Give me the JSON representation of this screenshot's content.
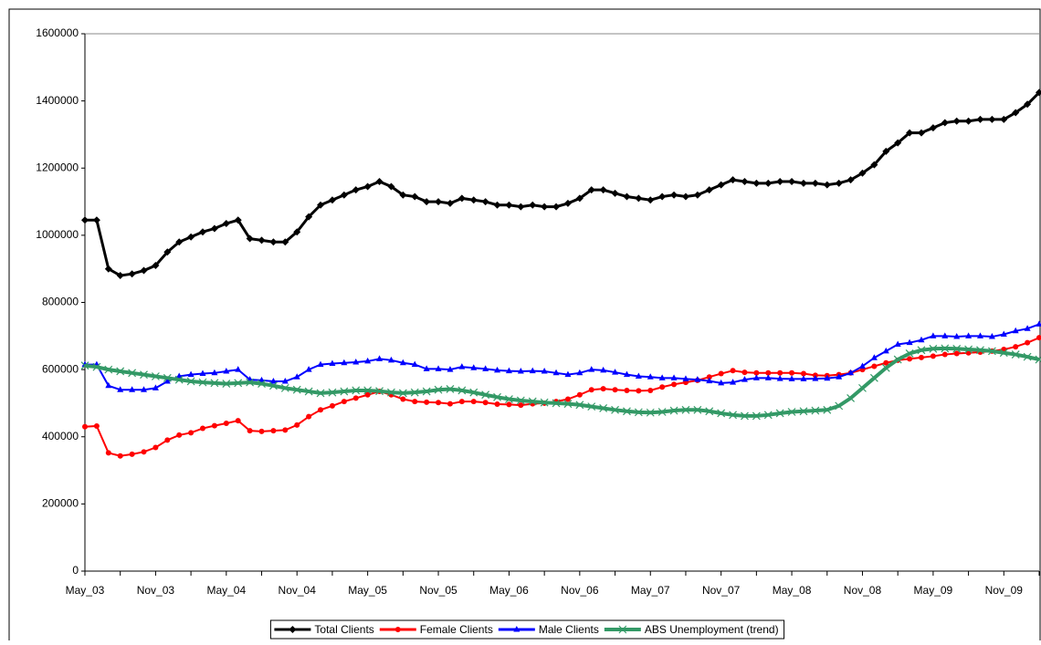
{
  "chart_data": {
    "type": "line",
    "categories": [
      "May_03",
      null,
      null,
      null,
      null,
      null,
      "Nov_03",
      null,
      null,
      null,
      null,
      null,
      "May_04",
      null,
      null,
      null,
      null,
      null,
      "Nov_04",
      null,
      null,
      null,
      null,
      null,
      "May_05",
      null,
      null,
      null,
      null,
      null,
      "Nov_05",
      null,
      null,
      null,
      null,
      null,
      "May_06",
      null,
      null,
      null,
      null,
      null,
      "Nov_06",
      null,
      null,
      null,
      null,
      null,
      "May_07",
      null,
      null,
      null,
      null,
      null,
      "Nov_07",
      null,
      null,
      null,
      null,
      null,
      "May_08",
      null,
      null,
      null,
      null,
      null,
      "Nov_08",
      null,
      null,
      null,
      null,
      null,
      "May_09",
      null,
      null,
      null,
      null,
      null,
      "Nov_09",
      null,
      null,
      null
    ],
    "ylim": [
      0,
      1600000
    ],
    "yticks": [
      0,
      200000,
      400000,
      600000,
      800000,
      1000000,
      1200000,
      1400000,
      1600000
    ],
    "legend": "bottom",
    "series": [
      {
        "name": "Total Clients",
        "color": "#000000",
        "marker": "diamond",
        "values": [
          1045000,
          1045000,
          900000,
          880000,
          885000,
          895000,
          910000,
          950000,
          980000,
          995000,
          1010000,
          1020000,
          1035000,
          1045000,
          990000,
          985000,
          980000,
          980000,
          1010000,
          1055000,
          1090000,
          1105000,
          1120000,
          1135000,
          1145000,
          1160000,
          1145000,
          1120000,
          1115000,
          1100000,
          1100000,
          1095000,
          1110000,
          1105000,
          1100000,
          1090000,
          1090000,
          1085000,
          1090000,
          1085000,
          1085000,
          1095000,
          1110000,
          1135000,
          1135000,
          1125000,
          1115000,
          1110000,
          1105000,
          1115000,
          1120000,
          1115000,
          1120000,
          1135000,
          1150000,
          1165000,
          1160000,
          1155000,
          1155000,
          1160000,
          1160000,
          1155000,
          1155000,
          1150000,
          1155000,
          1165000,
          1185000,
          1210000,
          1250000,
          1275000,
          1305000,
          1305000,
          1320000,
          1335000,
          1340000,
          1340000,
          1345000,
          1345000,
          1345000,
          1365000,
          1390000,
          1425000
        ]
      },
      {
        "name": "Female Clients",
        "color": "#ff0000",
        "marker": "circle",
        "values": [
          430000,
          432000,
          352000,
          343000,
          348000,
          355000,
          368000,
          390000,
          405000,
          412000,
          425000,
          433000,
          440000,
          448000,
          418000,
          416000,
          418000,
          420000,
          435000,
          460000,
          480000,
          492000,
          505000,
          515000,
          525000,
          535000,
          525000,
          512000,
          505000,
          503000,
          502000,
          498000,
          505000,
          505000,
          502000,
          497000,
          496000,
          494000,
          498000,
          500000,
          505000,
          512000,
          525000,
          540000,
          543000,
          540000,
          538000,
          537000,
          538000,
          548000,
          556000,
          562000,
          568000,
          578000,
          588000,
          597000,
          592000,
          590000,
          590000,
          590000,
          590000,
          588000,
          583000,
          582000,
          585000,
          590000,
          600000,
          610000,
          620000,
          628000,
          632000,
          636000,
          640000,
          645000,
          648000,
          650000,
          652000,
          655000,
          660000,
          668000,
          680000,
          695000
        ]
      },
      {
        "name": "Male Clients",
        "color": "#0000ff",
        "marker": "triangle",
        "values": [
          615000,
          615000,
          552000,
          540000,
          540000,
          540000,
          545000,
          565000,
          580000,
          585000,
          588000,
          590000,
          595000,
          600000,
          570000,
          568000,
          565000,
          565000,
          578000,
          600000,
          615000,
          618000,
          620000,
          622000,
          625000,
          632000,
          628000,
          620000,
          615000,
          602000,
          602000,
          600000,
          608000,
          605000,
          602000,
          598000,
          596000,
          595000,
          596000,
          595000,
          590000,
          585000,
          590000,
          600000,
          598000,
          592000,
          585000,
          580000,
          578000,
          575000,
          575000,
          572000,
          570000,
          566000,
          560000,
          562000,
          570000,
          575000,
          575000,
          573000,
          572000,
          572000,
          573000,
          574000,
          578000,
          590000,
          610000,
          635000,
          655000,
          675000,
          680000,
          688000,
          700000,
          700000,
          698000,
          700000,
          700000,
          698000,
          705000,
          715000,
          722000,
          735000
        ]
      },
      {
        "name": "ABS Unemployment (trend)",
        "color": "#339966",
        "marker": "x",
        "values": [
          612000,
          608000,
          600000,
          595000,
          590000,
          585000,
          580000,
          575000,
          570000,
          565000,
          562000,
          560000,
          558000,
          560000,
          562000,
          558000,
          552000,
          545000,
          540000,
          535000,
          530000,
          532000,
          535000,
          538000,
          538000,
          536000,
          532000,
          530000,
          532000,
          535000,
          540000,
          542000,
          538000,
          532000,
          525000,
          518000,
          512000,
          508000,
          505000,
          502000,
          500000,
          498000,
          495000,
          490000,
          485000,
          480000,
          476000,
          473000,
          472000,
          474000,
          478000,
          480000,
          480000,
          476000,
          470000,
          465000,
          462000,
          462000,
          465000,
          470000,
          474000,
          476000,
          478000,
          480000,
          492000,
          515000,
          545000,
          575000,
          605000,
          630000,
          648000,
          658000,
          662000,
          663000,
          662000,
          660000,
          658000,
          655000,
          650000,
          645000,
          638000,
          630000
        ]
      }
    ]
  }
}
